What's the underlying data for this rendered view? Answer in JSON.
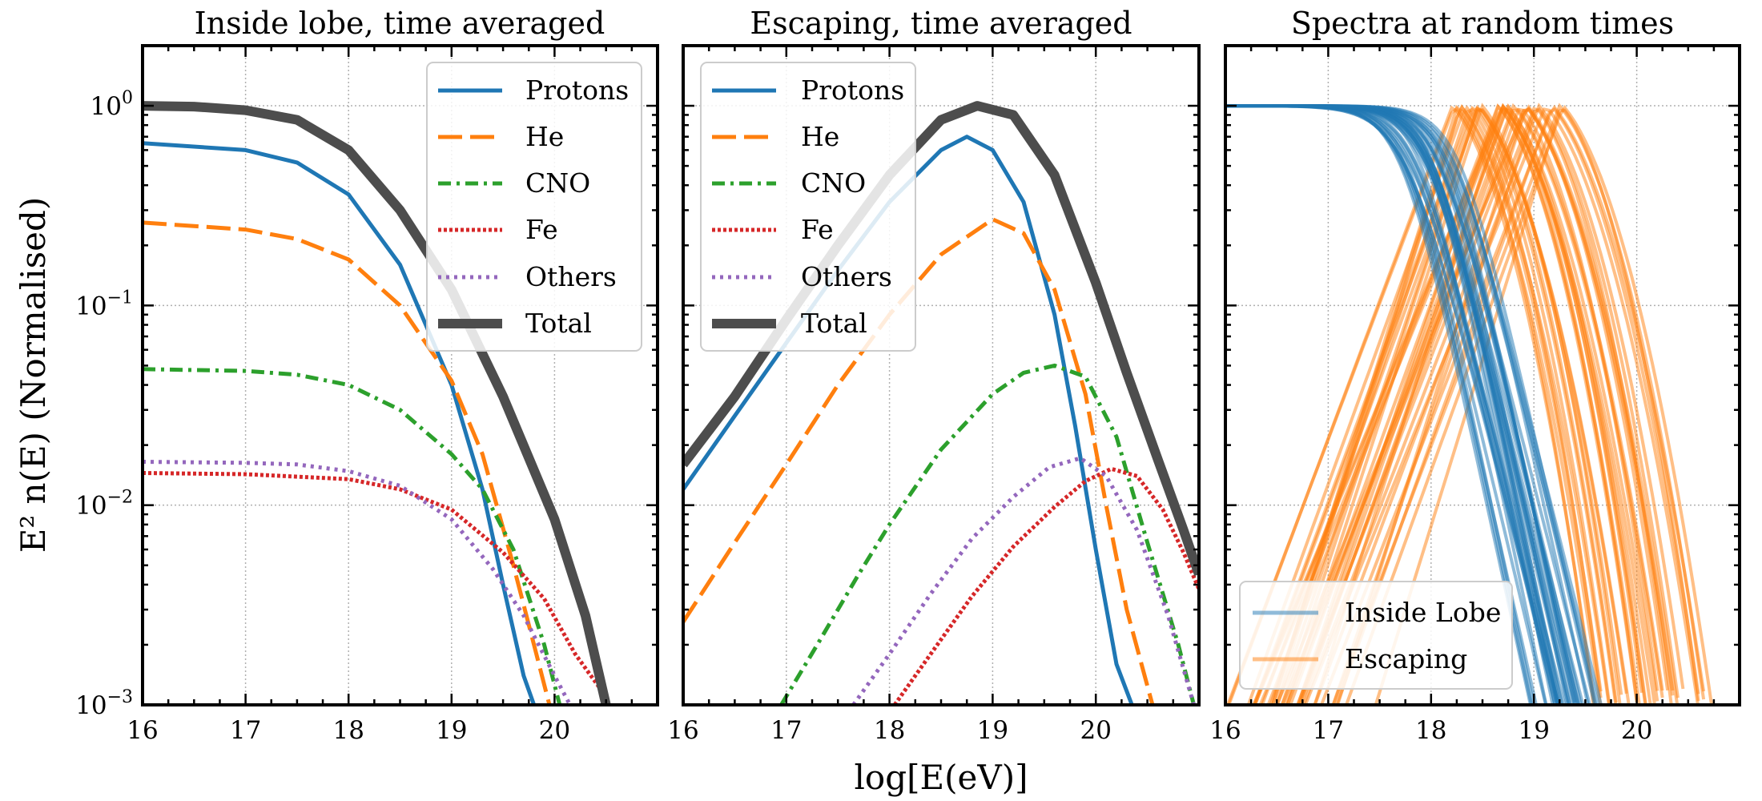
{
  "figure": {
    "xlabel": "log[E(eV)]",
    "ylabel": "E² n(E) (Normalised)"
  },
  "chart_data": [
    {
      "type": "line",
      "title": "Inside lobe, time averaged",
      "xlim": [
        16,
        21
      ],
      "ylim": [
        0.001,
        2
      ],
      "yscale": "log",
      "grid": true,
      "legend_position": "top-right",
      "x_ticks": [
        "16",
        "17",
        "18",
        "19",
        "20"
      ],
      "y_ticks": [
        {
          "base": "10",
          "exp": "0",
          "value": 1
        },
        {
          "base": "10",
          "exp": "−1",
          "value": 0.1
        },
        {
          "base": "10",
          "exp": "−2",
          "value": 0.01
        },
        {
          "base": "10",
          "exp": "−3",
          "value": 0.001
        }
      ],
      "series": [
        {
          "name": "Protons",
          "color": "#1f77b4",
          "style": "solid",
          "x": [
            16,
            17,
            17.5,
            18,
            18.5,
            19,
            19.3,
            19.5,
            19.7,
            19.8
          ],
          "y": [
            0.65,
            0.6,
            0.52,
            0.36,
            0.16,
            0.04,
            0.012,
            0.004,
            0.0014,
            0.001
          ]
        },
        {
          "name": "He",
          "color": "#ff7f0e",
          "style": "dashed",
          "x": [
            16,
            17,
            17.5,
            18,
            18.5,
            19,
            19.3,
            19.6,
            19.8,
            19.95
          ],
          "y": [
            0.26,
            0.24,
            0.215,
            0.17,
            0.1,
            0.042,
            0.018,
            0.005,
            0.002,
            0.001
          ]
        },
        {
          "name": "CNO",
          "color": "#2ca02c",
          "style": "dashdot",
          "x": [
            16,
            17,
            17.5,
            18,
            18.5,
            19,
            19.3,
            19.6,
            19.9,
            20.05
          ],
          "y": [
            0.048,
            0.047,
            0.045,
            0.04,
            0.03,
            0.018,
            0.012,
            0.006,
            0.002,
            0.001
          ]
        },
        {
          "name": "Fe",
          "color": "#d62728",
          "style": "dotted",
          "x": [
            16,
            17,
            18,
            18.5,
            19,
            19.5,
            19.9,
            20.2,
            20.5
          ],
          "y": [
            0.0145,
            0.0143,
            0.0135,
            0.012,
            0.0095,
            0.0058,
            0.0034,
            0.0018,
            0.0011
          ]
        },
        {
          "name": "Others",
          "color": "#9467bd",
          "style": "dotted",
          "x": [
            16,
            17,
            17.5,
            18,
            18.5,
            19,
            19.4,
            19.7,
            20,
            20.15
          ],
          "y": [
            0.0165,
            0.0163,
            0.016,
            0.0148,
            0.0125,
            0.0085,
            0.0048,
            0.0028,
            0.0014,
            0.001
          ]
        },
        {
          "name": "Total",
          "color": "#4d4d4d",
          "style": "solid-thick",
          "x": [
            16,
            16.5,
            17,
            17.5,
            18,
            18.5,
            19,
            19.5,
            20,
            20.3,
            20.5
          ],
          "y": [
            1.0,
            0.99,
            0.95,
            0.85,
            0.6,
            0.3,
            0.12,
            0.035,
            0.0085,
            0.0028,
            0.001
          ]
        }
      ]
    },
    {
      "type": "line",
      "title": "Escaping, time averaged",
      "xlim": [
        16,
        21
      ],
      "ylim": [
        0.001,
        2
      ],
      "yscale": "log",
      "grid": true,
      "legend_position": "top-left",
      "x_ticks": [
        "16",
        "17",
        "18",
        "19",
        "20"
      ],
      "series": [
        {
          "name": "Protons",
          "color": "#1f77b4",
          "style": "solid",
          "x": [
            16,
            16.5,
            17,
            17.5,
            18,
            18.5,
            18.75,
            19,
            19.3,
            19.6,
            19.8,
            20,
            20.2,
            20.35
          ],
          "y": [
            0.012,
            0.028,
            0.065,
            0.15,
            0.33,
            0.6,
            0.7,
            0.6,
            0.33,
            0.09,
            0.025,
            0.006,
            0.0016,
            0.001
          ]
        },
        {
          "name": "He",
          "color": "#ff7f0e",
          "style": "dashed",
          "x": [
            16,
            16.5,
            17,
            17.5,
            18,
            18.5,
            19,
            19.3,
            19.6,
            19.9,
            20.1,
            20.3,
            20.55
          ],
          "y": [
            0.0026,
            0.0065,
            0.016,
            0.04,
            0.09,
            0.18,
            0.27,
            0.23,
            0.12,
            0.036,
            0.01,
            0.003,
            0.001
          ]
        },
        {
          "name": "CNO",
          "color": "#2ca02c",
          "style": "dashdot",
          "x": [
            16.95,
            17.3,
            17.7,
            18,
            18.5,
            19,
            19.3,
            19.6,
            19.9,
            20.2,
            20.5,
            20.8,
            20.95
          ],
          "y": [
            0.001,
            0.002,
            0.0045,
            0.008,
            0.019,
            0.036,
            0.046,
            0.05,
            0.044,
            0.022,
            0.0065,
            0.002,
            0.001
          ]
        },
        {
          "name": "Fe",
          "color": "#d62728",
          "style": "dotted",
          "x": [
            18.05,
            18.4,
            18.8,
            19.2,
            19.6,
            19.9,
            20.15,
            20.4,
            20.65,
            20.85,
            21
          ],
          "y": [
            0.001,
            0.0018,
            0.0035,
            0.0062,
            0.0098,
            0.0132,
            0.0152,
            0.014,
            0.0095,
            0.0058,
            0.0038
          ]
        },
        {
          "name": "Others",
          "color": "#9467bd",
          "style": "dotted",
          "x": [
            17.65,
            18,
            18.4,
            18.8,
            19.2,
            19.55,
            19.85,
            20.1,
            20.4,
            20.7,
            20.95
          ],
          "y": [
            0.001,
            0.0018,
            0.0036,
            0.0068,
            0.011,
            0.0155,
            0.0172,
            0.014,
            0.0075,
            0.0028,
            0.001
          ]
        },
        {
          "name": "Total",
          "color": "#4d4d4d",
          "style": "solid-thick",
          "x": [
            16,
            16.5,
            17,
            17.5,
            18,
            18.5,
            18.85,
            19.2,
            19.6,
            20,
            20.3,
            20.6,
            20.85,
            21
          ],
          "y": [
            0.016,
            0.035,
            0.085,
            0.2,
            0.45,
            0.85,
            1.0,
            0.9,
            0.45,
            0.13,
            0.046,
            0.017,
            0.0075,
            0.0045
          ]
        }
      ]
    },
    {
      "type": "line",
      "title": "Spectra at random times",
      "xlim": [
        16,
        21
      ],
      "ylim": [
        0.001,
        2
      ],
      "yscale": "log",
      "grid": true,
      "legend_position": "bottom-left",
      "x_ticks": [
        "16",
        "17",
        "18",
        "19",
        "20"
      ],
      "series": [
        {
          "name": "Inside Lobe",
          "color": "#1f77b4",
          "alpha": 0.5,
          "model": "y = 1/(1 + (10^(x - x0))^2.2); 40 curves with x0 spanning 17.7–18.3"
        },
        {
          "name": "Escaping",
          "color": "#ff7f0e",
          "alpha": 0.5,
          "model": "peaked at 1.0; 40 curves with peak position spanning 18.2–19.3"
        }
      ]
    }
  ]
}
